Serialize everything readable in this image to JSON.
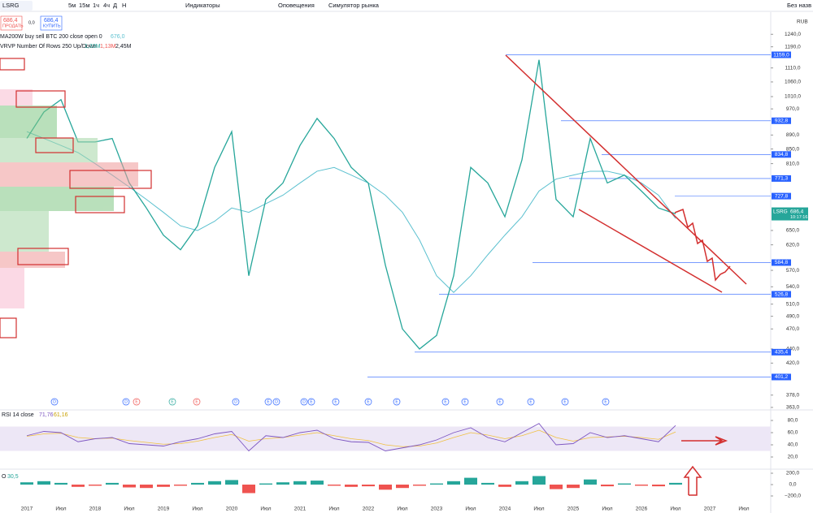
{
  "toolbar": {
    "symbol": "LSRG",
    "intervals": [
      "5м",
      "15м",
      "1ч",
      "4ч",
      "Д",
      "Н"
    ],
    "indicators": "Индикаторы",
    "alerts": "Оповещения",
    "simulator": "Симулятор рынка",
    "layout_name": "Без назв"
  },
  "trade": {
    "sell_price": "686,4",
    "sell": "ПРОДАТЬ",
    "spread": "0,0",
    "buy_price": "686,4",
    "buy": "КУПИТЬ"
  },
  "legend": {
    "ma": "MA200W buy sell BTC 200 close open 0",
    "ma_value": "676,0",
    "vrvp": "VRVP Number Of Rows 250 Up/Down",
    "vrvp_up": "1,33M",
    "vrvp_down": "1,13M",
    "vrvp_total": "2,45M",
    "rsi": "RSI 14 close",
    "rsi_value": "71,76",
    "rsi_signal": "61,16",
    "osc": "O",
    "osc_value": "30,5"
  },
  "currency": "RUB",
  "current": {
    "symbol": "LSRG",
    "price": "686,4",
    "timer": "10:17:16"
  },
  "events": [
    "D",
    "D",
    "E",
    "E",
    "E",
    "D",
    "E",
    "D",
    "D",
    "E",
    "E",
    "E",
    "E",
    "E",
    "E",
    "E",
    "E",
    "E",
    "E"
  ],
  "chart_data": [
    {
      "type": "line",
      "log_scale": true,
      "categories": [
        "2017",
        null,
        "Июл",
        null,
        "2018",
        null,
        "Июл",
        null,
        "2019",
        null,
        "Июл",
        null,
        "2020",
        null,
        "Июл",
        null,
        "2021",
        null,
        "Июл",
        null,
        "2022",
        null,
        "Июл",
        null,
        "2023",
        null,
        "Июл",
        null,
        "2024",
        null,
        "Июл",
        null,
        "2025",
        null,
        "Июл",
        null,
        "2026",
        null,
        "Июл",
        null,
        "2027",
        null,
        "Июл"
      ],
      "series": [
        {
          "name": "LSRG",
          "color": "#26a69a",
          "values": [
            880,
            960,
            1000,
            870,
            870,
            880,
            760,
            700,
            640,
            610,
            660,
            800,
            900,
            560,
            720,
            760,
            860,
            940,
            880,
            800,
            760,
            580,
            470,
            440,
            460,
            560,
            800,
            760,
            680,
            820,
            1140,
            720,
            680,
            880,
            760,
            780,
            740,
            700,
            686.4,
            null,
            null,
            null,
            null
          ]
        },
        {
          "name": "MA200W",
          "color": "#5bc0cf",
          "values": [
            900,
            880,
            860,
            840,
            810,
            780,
            750,
            720,
            690,
            660,
            650,
            670,
            700,
            690,
            710,
            730,
            760,
            790,
            800,
            780,
            760,
            730,
            690,
            630,
            560,
            530,
            560,
            600,
            640,
            680,
            740,
            770,
            780,
            790,
            790,
            780,
            760,
            730,
            676,
            null,
            null,
            null,
            null
          ]
        }
      ],
      "levels": [
        {
          "value": 1159,
          "label": "1159,0"
        },
        {
          "value": 932.8,
          "label": "932,8"
        },
        {
          "value": 834.8,
          "label": "834,8"
        },
        {
          "value": 771.3,
          "label": "771,3"
        },
        {
          "value": 727.8,
          "label": "727,8"
        },
        {
          "value": 584.8,
          "label": "584,8"
        },
        {
          "value": 526.8,
          "label": "526,8"
        },
        {
          "value": 435.4,
          "label": "435,4"
        },
        {
          "value": 401.2,
          "label": "401,2"
        }
      ],
      "ylim": [
        360,
        1316
      ],
      "yticks": [
        {
          "value": 1240,
          "label": "1240,0"
        },
        {
          "value": 1190,
          "label": "1190,0"
        },
        {
          "value": 1110,
          "label": "1110,0"
        },
        {
          "value": 1060,
          "label": "1060,0"
        },
        {
          "value": 1010,
          "label": "1010,0"
        },
        {
          "value": 970,
          "label": "970,0"
        },
        {
          "value": 890,
          "label": "890,0"
        },
        {
          "value": 850,
          "label": "850,0"
        },
        {
          "value": 810,
          "label": "810,0"
        },
        {
          "value": 650,
          "label": "650,0"
        },
        {
          "value": 620,
          "label": "620,0"
        },
        {
          "value": 570,
          "label": "570,0"
        },
        {
          "value": 540,
          "label": "540,0"
        },
        {
          "value": 510,
          "label": "510,0"
        },
        {
          "value": 490,
          "label": "490,0"
        },
        {
          "value": 470,
          "label": "470,0"
        },
        {
          "value": 440,
          "label": "440,0"
        },
        {
          "value": 420,
          "label": "420,0"
        },
        {
          "value": 378,
          "label": "378,0"
        },
        {
          "value": 363,
          "label": "363,0"
        }
      ]
    },
    {
      "type": "line",
      "series": [
        {
          "name": "RSI",
          "color": "#7e57c2",
          "values": [
            55,
            62,
            60,
            45,
            50,
            52,
            42,
            40,
            38,
            45,
            50,
            58,
            62,
            30,
            55,
            52,
            60,
            64,
            50,
            45,
            44,
            30,
            35,
            40,
            48,
            60,
            68,
            52,
            45,
            60,
            75,
            40,
            42,
            60,
            52,
            55,
            50,
            45,
            71.76,
            null,
            null,
            null,
            null
          ]
        },
        {
          "name": "Signal",
          "color": "#f0c040",
          "values": [
            54,
            58,
            59,
            52,
            50,
            51,
            47,
            44,
            41,
            42,
            46,
            52,
            57,
            46,
            50,
            52,
            56,
            60,
            55,
            50,
            47,
            40,
            37,
            38,
            43,
            52,
            60,
            56,
            50,
            55,
            64,
            52,
            46,
            52,
            53,
            54,
            52,
            49,
            61.16,
            null,
            null,
            null,
            null
          ]
        }
      ],
      "ylim": [
        0,
        100
      ],
      "yticks": [
        {
          "value": 80,
          "label": "80,0"
        },
        {
          "value": 60,
          "label": "60,0"
        },
        {
          "value": 40,
          "label": "40,0"
        },
        {
          "value": 20,
          "label": "20,0"
        }
      ]
    },
    {
      "type": "bar",
      "series": [
        {
          "name": "Osc",
          "color": "#ef5350",
          "values": [
            40,
            60,
            30,
            -40,
            -20,
            30,
            -50,
            -60,
            -40,
            -20,
            30,
            60,
            80,
            -150,
            20,
            40,
            60,
            70,
            -20,
            -40,
            -30,
            -90,
            -60,
            -20,
            20,
            60,
            120,
            30,
            -40,
            60,
            150,
            -80,
            -60,
            90,
            -30,
            20,
            -20,
            -30,
            30.5,
            null,
            null,
            null,
            null
          ]
        }
      ],
      "ylim": [
        -300,
        300
      ],
      "yticks": [
        {
          "value": 200,
          "label": "200,0"
        },
        {
          "value": 0,
          "label": "0,0"
        },
        {
          "value": -200,
          "label": "−200,0"
        }
      ]
    }
  ]
}
